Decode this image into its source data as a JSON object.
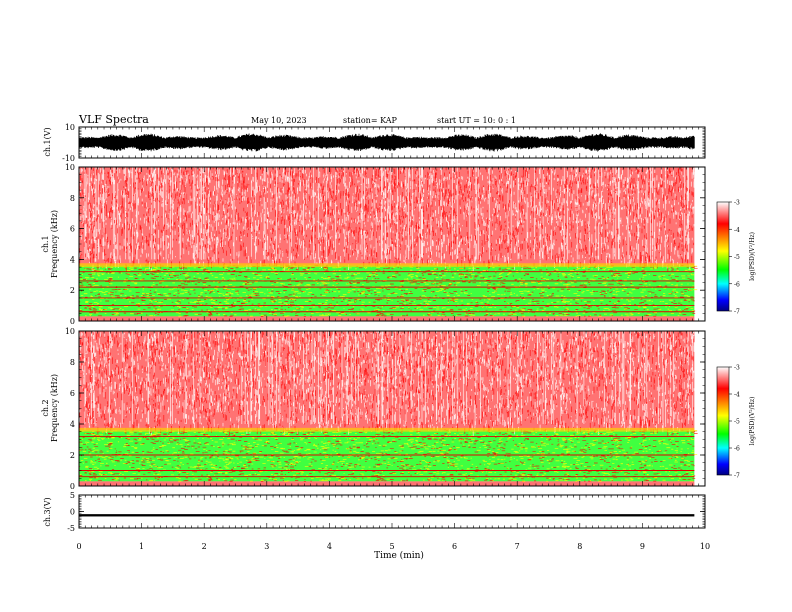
{
  "header": {
    "title": "VLF Spectra",
    "date": "May 10, 2023",
    "station": "station= KAP",
    "start": "start  UT  =   10: 0  : 1"
  },
  "colorbar": {
    "label": "log(PSD)(V²/Hz)",
    "ticks": [
      "-3",
      "-4",
      "-5",
      "-6",
      "-7"
    ],
    "colors": [
      "#ffffff",
      "#ff0000",
      "#ffff00",
      "#00ff00",
      "#00ffff",
      "#0000ff",
      "#000080"
    ]
  },
  "chart_data": [
    {
      "type": "line",
      "name": "ch1-waveform",
      "ylabel": "ch.1(V)",
      "ylim": [
        -10,
        10
      ],
      "ytick_labels": [
        "10",
        "-10"
      ],
      "xlim": [
        0,
        10
      ],
      "data_xmax": 9.83,
      "amplitude_range": [
        -6,
        6
      ],
      "color": "#000000"
    },
    {
      "type": "heatmap",
      "name": "ch1-spectrogram",
      "ylabel": "ch.1\nFrequency (kHz)",
      "ylim": [
        0,
        10
      ],
      "ytick_labels": [
        "0",
        "2",
        "4",
        "6",
        "8",
        "10"
      ],
      "xlim": [
        0,
        10
      ],
      "data_xmax": 9.83,
      "zlim": [
        -7,
        -3
      ],
      "band_structure": [
        {
          "range_khz": [
            3.6,
            10
          ],
          "level": "high",
          "color": "#ff0000"
        },
        {
          "range_khz": [
            0.3,
            3.6
          ],
          "level": "mid",
          "color": "#00ff00"
        },
        {
          "range_khz": [
            0,
            0.3
          ],
          "level": "high",
          "color": "#ff0000"
        }
      ],
      "lines_khz": [
        0.6,
        1.0,
        1.5,
        2.2,
        2.6,
        3.2
      ]
    },
    {
      "type": "heatmap",
      "name": "ch2-spectrogram",
      "ylabel": "ch.2\nFrequency (kHz)",
      "ylim": [
        0,
        10
      ],
      "ytick_labels": [
        "0",
        "2",
        "4",
        "6",
        "8",
        "10"
      ],
      "xlim": [
        0,
        10
      ],
      "data_xmax": 9.83,
      "zlim": [
        -7,
        -3
      ],
      "band_structure": [
        {
          "range_khz": [
            3.6,
            10
          ],
          "level": "high",
          "color": "#ff0000"
        },
        {
          "range_khz": [
            0.3,
            3.6
          ],
          "level": "mid",
          "color": "#00ff00"
        },
        {
          "range_khz": [
            0,
            0.3
          ],
          "level": "high",
          "color": "#ff0000"
        }
      ],
      "lines_khz": [
        0.6,
        1.0,
        2.0,
        3.2
      ]
    },
    {
      "type": "line",
      "name": "ch3-waveform",
      "ylabel": "ch.3(V)",
      "ylim": [
        -5,
        5
      ],
      "ytick_labels": [
        "5",
        "0",
        "-5"
      ],
      "xlim": [
        0,
        10
      ],
      "data_xmax": 9.83,
      "amplitude_range": [
        -1.5,
        -0.8
      ],
      "color": "#000000"
    }
  ],
  "xaxis": {
    "label": "Time (min)",
    "tick_labels": [
      "0",
      "1",
      "2",
      "3",
      "4",
      "5",
      "6",
      "7",
      "8",
      "9",
      "10"
    ],
    "range": [
      0,
      10
    ]
  }
}
